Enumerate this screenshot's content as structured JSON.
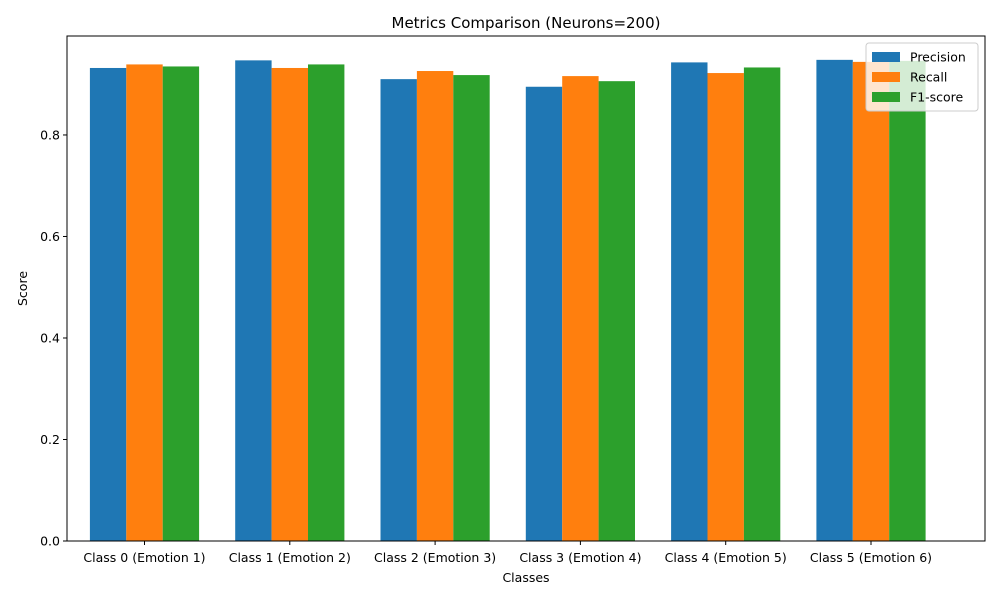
{
  "chart_data": {
    "type": "bar",
    "title": "Metrics Comparison (Neurons=200)",
    "xlabel": "Classes",
    "ylabel": "Score",
    "categories": [
      "Class 0 (Emotion 1)",
      "Class 1 (Emotion 2)",
      "Class 2 (Emotion 3)",
      "Class 3 (Emotion 4)",
      "Class 4 (Emotion 5)",
      "Class 5 (Emotion 6)"
    ],
    "series": [
      {
        "name": "Precision",
        "color": "#1f77b4",
        "values": [
          0.932,
          0.947,
          0.91,
          0.895,
          0.943,
          0.948
        ]
      },
      {
        "name": "Recall",
        "color": "#ff7f0e",
        "values": [
          0.939,
          0.932,
          0.926,
          0.916,
          0.922,
          0.944
        ]
      },
      {
        "name": "F1-score",
        "color": "#2ca02c",
        "values": [
          0.935,
          0.939,
          0.918,
          0.906,
          0.933,
          0.946
        ]
      }
    ],
    "ylim": [
      0,
      0.995
    ],
    "yticks": [
      "0.0",
      "0.2",
      "0.4",
      "0.6",
      "0.8"
    ],
    "ytick_values": [
      0,
      0.2,
      0.4,
      0.6,
      0.8
    ],
    "grid": false,
    "legend_position": "top-right"
  }
}
